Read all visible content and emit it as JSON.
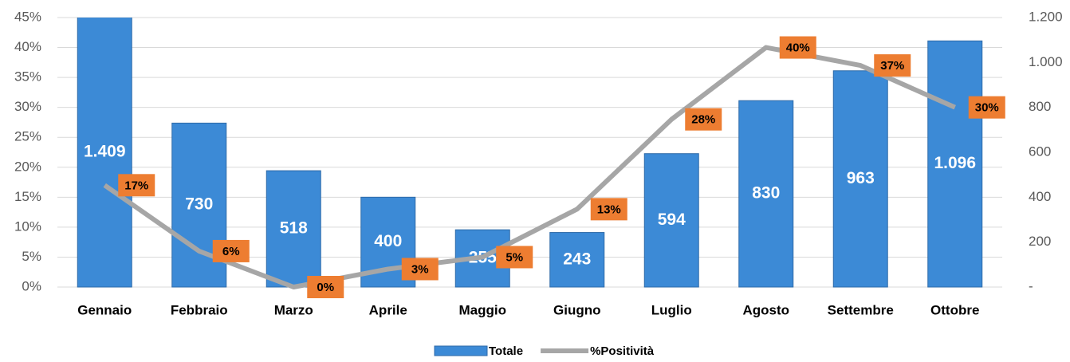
{
  "chart_data": {
    "type": "bar-line",
    "categories": [
      "Gennaio",
      "Febbraio",
      "Marzo",
      "Aprile",
      "Maggio",
      "Giugno",
      "Luglio",
      "Agosto",
      "Settembre",
      "Ottobre"
    ],
    "series": [
      {
        "name": "Totale",
        "type": "bar",
        "axis": "y2",
        "color": "#3c8ad6",
        "values": [
          1409,
          730,
          518,
          400,
          255,
          243,
          594,
          830,
          963,
          1096
        ],
        "value_labels": [
          "1.409",
          "730",
          "518",
          "400",
          "255",
          "243",
          "594",
          "830",
          "963",
          "1.096"
        ]
      },
      {
        "name": "%Positività",
        "type": "line",
        "axis": "y",
        "color": "#a6a6a6",
        "label_color": "#ed7d31",
        "values": [
          17,
          6,
          0,
          3,
          5,
          13,
          28,
          40,
          37,
          30
        ],
        "value_labels": [
          "17%",
          "6%",
          "0%",
          "3%",
          "5%",
          "13%",
          "28%",
          "40%",
          "37%",
          "30%"
        ]
      }
    ],
    "ylim": [
      0,
      45
    ],
    "yticks": [
      {
        "value": 0,
        "label": "0%"
      },
      {
        "value": 5,
        "label": "5%"
      },
      {
        "value": 10,
        "label": "10%"
      },
      {
        "value": 15,
        "label": "15%"
      },
      {
        "value": 20,
        "label": "20%"
      },
      {
        "value": 25,
        "label": "25%"
      },
      {
        "value": 30,
        "label": "30%"
      },
      {
        "value": 35,
        "label": "35%"
      },
      {
        "value": 40,
        "label": "40%"
      },
      {
        "value": 45,
        "label": "45%"
      }
    ],
    "y2lim": [
      0,
      1200
    ],
    "y2ticks": [
      {
        "value": 0,
        "label": "-"
      },
      200,
      400,
      600,
      800,
      {
        "value": 1000,
        "label": "1.000"
      },
      {
        "value": 1200,
        "label": "1.200"
      }
    ],
    "grid": true,
    "legend": "bottom"
  }
}
